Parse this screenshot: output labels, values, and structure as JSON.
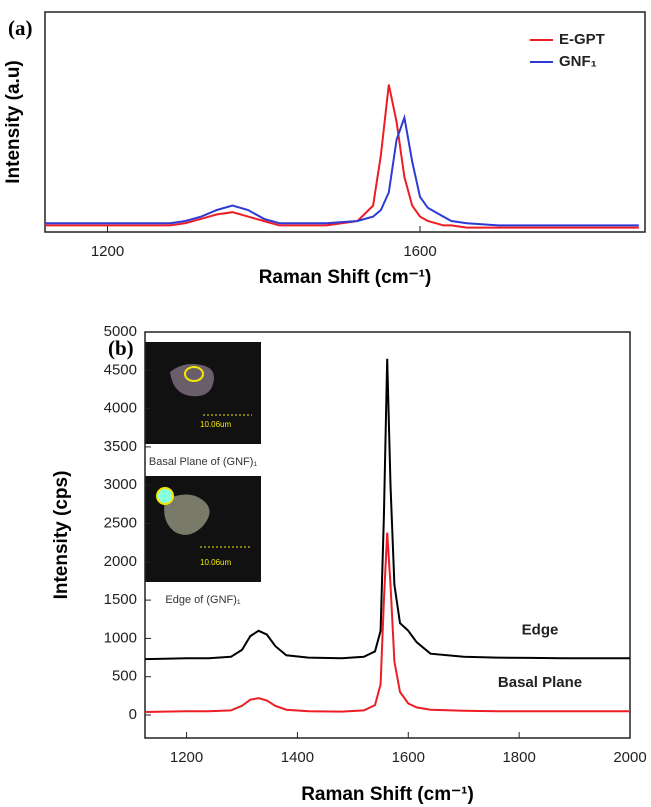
{
  "chart_data": [
    {
      "type": "line",
      "panel": "(a)",
      "xlabel": "Raman Shift (cm⁻¹)",
      "ylabel": "Intensity (a.u)",
      "xlim": [
        1120,
        1888
      ],
      "xticks": [
        1200,
        1600
      ],
      "ylim": [
        0,
        1
      ],
      "legend": "upper right",
      "x": [
        1120,
        1160,
        1200,
        1240,
        1280,
        1300,
        1320,
        1340,
        1360,
        1380,
        1400,
        1420,
        1440,
        1480,
        1520,
        1540,
        1550,
        1560,
        1570,
        1580,
        1590,
        1600,
        1610,
        1620,
        1630,
        1640,
        1660,
        1700,
        1760,
        1820,
        1880
      ],
      "series": [
        {
          "name": "E-GPT",
          "color": "#ee1c24",
          "values": [
            0.03,
            0.03,
            0.03,
            0.03,
            0.03,
            0.04,
            0.06,
            0.08,
            0.09,
            0.07,
            0.05,
            0.03,
            0.03,
            0.03,
            0.05,
            0.12,
            0.35,
            0.67,
            0.5,
            0.25,
            0.12,
            0.07,
            0.05,
            0.04,
            0.03,
            0.03,
            0.02,
            0.02,
            0.02,
            0.02,
            0.02
          ]
        },
        {
          "name": "GNF₁",
          "color": "#2e3ad6",
          "values": [
            0.04,
            0.04,
            0.04,
            0.04,
            0.04,
            0.05,
            0.07,
            0.1,
            0.12,
            0.1,
            0.06,
            0.04,
            0.04,
            0.04,
            0.05,
            0.07,
            0.1,
            0.18,
            0.42,
            0.52,
            0.32,
            0.16,
            0.11,
            0.09,
            0.07,
            0.05,
            0.04,
            0.03,
            0.03,
            0.03,
            0.03
          ]
        }
      ]
    },
    {
      "type": "line",
      "panel": "(b)",
      "xlabel": "Raman Shift (cm⁻¹)",
      "ylabel": "Intensity (cps)",
      "xlim": [
        1125,
        2000
      ],
      "xticks": [
        1200,
        1400,
        1600,
        1800,
        2000
      ],
      "ylim": [
        -300,
        5000
      ],
      "yticks": [
        0,
        500,
        1000,
        1500,
        2000,
        2500,
        3000,
        3500,
        4000,
        4500,
        5000
      ],
      "x": [
        1125,
        1160,
        1200,
        1240,
        1280,
        1300,
        1315,
        1330,
        1345,
        1360,
        1380,
        1420,
        1480,
        1520,
        1540,
        1550,
        1556,
        1562,
        1568,
        1575,
        1585,
        1600,
        1615,
        1640,
        1700,
        1760,
        1820,
        1880,
        1940,
        2000
      ],
      "series": [
        {
          "name": "Edge",
          "color": "#000000",
          "values": [
            730,
            735,
            740,
            740,
            760,
            850,
            1030,
            1100,
            1050,
            900,
            780,
            750,
            740,
            760,
            830,
            1100,
            2600,
            4650,
            3000,
            1700,
            1200,
            1100,
            950,
            800,
            760,
            750,
            745,
            740,
            740,
            740
          ]
        },
        {
          "name": "Basal Plane",
          "color": "#ee1c24",
          "values": [
            40,
            45,
            50,
            50,
            60,
            120,
            200,
            220,
            190,
            120,
            70,
            50,
            45,
            60,
            130,
            400,
            1500,
            2380,
            1700,
            700,
            300,
            150,
            100,
            70,
            55,
            50,
            50,
            50,
            50,
            50
          ]
        }
      ],
      "insets": [
        {
          "scale": "10.06um",
          "caption": "Basal Plane of (GNF)₁"
        },
        {
          "scale": "10.06um",
          "caption": "Edge of (GNF)₁"
        }
      ]
    }
  ]
}
